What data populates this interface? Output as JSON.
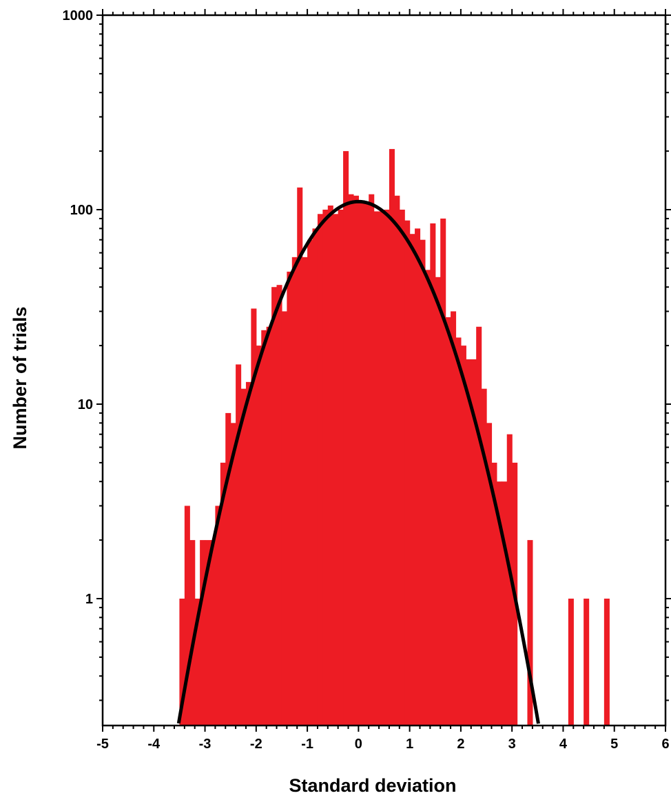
{
  "chart_data": {
    "type": "bar",
    "xlabel": "Standard deviation",
    "ylabel": "Number of trials",
    "xlim": [
      -5,
      6
    ],
    "ylim": [
      0.25,
      1000
    ],
    "yscale": "log",
    "grid": false,
    "legend": "none",
    "bin_width": 0.1,
    "x_ticks": [
      "-5",
      "-4",
      "-3",
      "-2",
      "-1",
      "0",
      "1",
      "2",
      "3",
      "4",
      "5",
      "6"
    ],
    "y_ticks": [
      "1",
      "10",
      "100",
      "1000"
    ],
    "bar_color": "#ed1c24",
    "curve_color": "#000000",
    "histogram": [
      {
        "x": -3.5,
        "value": 1
      },
      {
        "x": -3.4,
        "value": 3
      },
      {
        "x": -3.3,
        "value": 2
      },
      {
        "x": -3.2,
        "value": 1
      },
      {
        "x": -3.1,
        "value": 2
      },
      {
        "x": -3.0,
        "value": 2
      },
      {
        "x": -2.9,
        "value": 2
      },
      {
        "x": -2.8,
        "value": 3
      },
      {
        "x": -2.7,
        "value": 5
      },
      {
        "x": -2.6,
        "value": 9
      },
      {
        "x": -2.5,
        "value": 8
      },
      {
        "x": -2.4,
        "value": 16
      },
      {
        "x": -2.3,
        "value": 12
      },
      {
        "x": -2.2,
        "value": 13
      },
      {
        "x": -2.1,
        "value": 31
      },
      {
        "x": -2.0,
        "value": 20
      },
      {
        "x": -1.9,
        "value": 24
      },
      {
        "x": -1.8,
        "value": 25
      },
      {
        "x": -1.7,
        "value": 40
      },
      {
        "x": -1.6,
        "value": 41
      },
      {
        "x": -1.5,
        "value": 30
      },
      {
        "x": -1.4,
        "value": 48
      },
      {
        "x": -1.3,
        "value": 57
      },
      {
        "x": -1.2,
        "value": 130
      },
      {
        "x": -1.1,
        "value": 57
      },
      {
        "x": -1.0,
        "value": 70
      },
      {
        "x": -0.9,
        "value": 80
      },
      {
        "x": -0.8,
        "value": 95
      },
      {
        "x": -0.7,
        "value": 100
      },
      {
        "x": -0.6,
        "value": 105
      },
      {
        "x": -0.5,
        "value": 95
      },
      {
        "x": -0.4,
        "value": 100
      },
      {
        "x": -0.3,
        "value": 200
      },
      {
        "x": -0.2,
        "value": 120
      },
      {
        "x": -0.1,
        "value": 118
      },
      {
        "x": 0.0,
        "value": 110
      },
      {
        "x": 0.1,
        "value": 110
      },
      {
        "x": 0.2,
        "value": 120
      },
      {
        "x": 0.3,
        "value": 98
      },
      {
        "x": 0.4,
        "value": 98
      },
      {
        "x": 0.5,
        "value": 100
      },
      {
        "x": 0.6,
        "value": 205
      },
      {
        "x": 0.7,
        "value": 118
      },
      {
        "x": 0.8,
        "value": 100
      },
      {
        "x": 0.9,
        "value": 88
      },
      {
        "x": 1.0,
        "value": 75
      },
      {
        "x": 1.1,
        "value": 80
      },
      {
        "x": 1.2,
        "value": 70
      },
      {
        "x": 1.3,
        "value": 49
      },
      {
        "x": 1.4,
        "value": 85
      },
      {
        "x": 1.5,
        "value": 45
      },
      {
        "x": 1.6,
        "value": 90
      },
      {
        "x": 1.7,
        "value": 28
      },
      {
        "x": 1.8,
        "value": 30
      },
      {
        "x": 1.9,
        "value": 22
      },
      {
        "x": 2.0,
        "value": 20
      },
      {
        "x": 2.1,
        "value": 17
      },
      {
        "x": 2.2,
        "value": 17
      },
      {
        "x": 2.3,
        "value": 25
      },
      {
        "x": 2.4,
        "value": 12
      },
      {
        "x": 2.5,
        "value": 8
      },
      {
        "x": 2.6,
        "value": 5
      },
      {
        "x": 2.7,
        "value": 4
      },
      {
        "x": 2.8,
        "value": 4
      },
      {
        "x": 2.9,
        "value": 7
      },
      {
        "x": 3.0,
        "value": 5
      },
      {
        "x": 3.3,
        "value": 2
      },
      {
        "x": 4.1,
        "value": 1
      },
      {
        "x": 4.4,
        "value": 1
      },
      {
        "x": 4.8,
        "value": 1
      }
    ],
    "fit_curve": {
      "type": "gaussian",
      "amplitude": 110,
      "mean": 0,
      "sigma": 1.0
    }
  }
}
